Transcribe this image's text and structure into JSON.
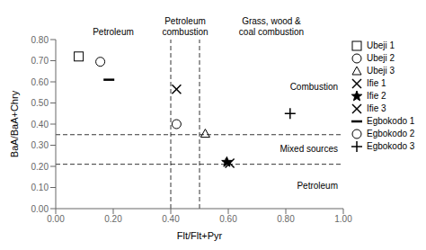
{
  "chart_data": {
    "type": "scatter",
    "xlabel": "Flt/Flt+Pyr",
    "ylabel": "BaA/BaA+Chry",
    "color": "black",
    "grid": false,
    "xlim": [
      0.0,
      1.0
    ],
    "ylim": [
      0.0,
      0.8
    ],
    "xticks": [
      {
        "value": 0.0,
        "label": "0.00"
      },
      {
        "value": 0.2,
        "label": "0.20"
      },
      {
        "value": 0.4,
        "label": "0.40"
      },
      {
        "value": 0.6,
        "label": "0.60"
      },
      {
        "value": 0.8,
        "label": "0.80"
      },
      {
        "value": 1.0,
        "label": "1.00"
      }
    ],
    "yticks": [
      {
        "value": 0.0,
        "label": "0.00"
      },
      {
        "value": 0.1,
        "label": "0.10"
      },
      {
        "value": 0.2,
        "label": "0.20"
      },
      {
        "value": 0.3,
        "label": "0.30"
      },
      {
        "value": 0.4,
        "label": "0.40"
      },
      {
        "value": 0.5,
        "label": "0.50"
      },
      {
        "value": 0.6,
        "label": "0.60"
      },
      {
        "value": 0.7,
        "label": "0.70"
      },
      {
        "value": 0.8,
        "label": "0.80"
      }
    ],
    "hlines": [
      0.35,
      0.21
    ],
    "vlines": [
      0.4,
      0.5
    ],
    "annotations": {
      "x_regions": [
        "Petroleum",
        "Petroleum\ncombustion",
        "Grass, wood &\ncoal combustion"
      ],
      "y_regions": [
        "Combustion",
        "Mixed sources",
        "Petroleum"
      ]
    },
    "series": [
      {
        "name": "Ubeji 1",
        "marker": "square",
        "x": [
          0.08
        ],
        "values": [
          0.72
        ]
      },
      {
        "name": "Ubeji 2",
        "marker": "circle",
        "x": [
          0.155
        ],
        "values": [
          0.695
        ]
      },
      {
        "name": "Ubeji 3",
        "marker": "triangle",
        "x": [
          0.52
        ],
        "values": [
          0.355
        ]
      },
      {
        "name": "Ifie 1",
        "marker": "x",
        "x": [
          0.42
        ],
        "values": [
          0.565
        ]
      },
      {
        "name": "Ifie 2",
        "marker": "star",
        "x": [
          0.595
        ],
        "values": [
          0.22
        ]
      },
      {
        "name": "Ifie 3",
        "marker": "x",
        "x": [
          0.605
        ],
        "values": [
          0.215
        ]
      },
      {
        "name": "Egbokodo 1",
        "marker": "dash",
        "x": [
          0.185
        ],
        "values": [
          0.61
        ]
      },
      {
        "name": "Egbokodo 2",
        "marker": "circle",
        "x": [
          0.42
        ],
        "values": [
          0.4
        ]
      },
      {
        "name": "Egbokodo 3",
        "marker": "plus",
        "x": [
          0.815
        ],
        "values": [
          0.45
        ]
      }
    ]
  }
}
